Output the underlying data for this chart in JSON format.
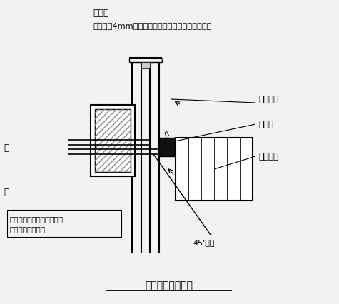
{
  "bg_color": "#f2f2f2",
  "line_color": "#000000",
  "title": "屏体两侧连接节点",
  "note_line1": "说明：",
  "note_line2": "装修板为4mm厚优质双面铝塑板。采用密封拼装。",
  "label_mozu": "模组箱体",
  "label_naihou": "耐候胶",
  "label_xianshi": "显示模块",
  "label_45": "45'斜角",
  "label_left1": "包边由专业厂家设计并施工",
  "label_left2": "（包边材料未定）",
  "label_left_char1": "码",
  "label_left_char2": "骨"
}
